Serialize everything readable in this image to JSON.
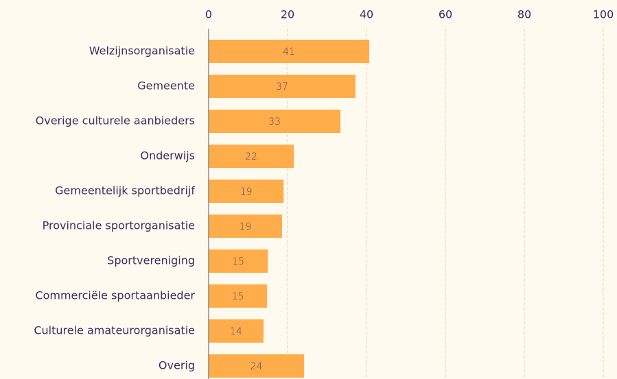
{
  "chart_data": {
    "type": "barh",
    "categories": [
      "Welzijnsorganisatie",
      "Gemeente",
      "Overige culturele aanbieders",
      "Onderwijs",
      "Gemeentelijk sportbedrijf",
      "Provinciale sportorganisatie",
      "Sportvereniging",
      "Commerciële sportaanbieder",
      "Culturele amateurorganisatie",
      "Overig"
    ],
    "values": [
      40.7,
      37.2,
      33.4,
      21.6,
      19.0,
      18.6,
      15.0,
      14.8,
      13.9,
      24.2
    ],
    "value_labels": [
      "41",
      "37",
      "33",
      "22",
      "19",
      "19",
      "15",
      "15",
      "14",
      "24"
    ],
    "color": "#ffac4a",
    "xlim": [
      0,
      100
    ],
    "xticks": [
      0,
      20,
      40,
      60,
      80,
      100
    ],
    "grid": true
  }
}
